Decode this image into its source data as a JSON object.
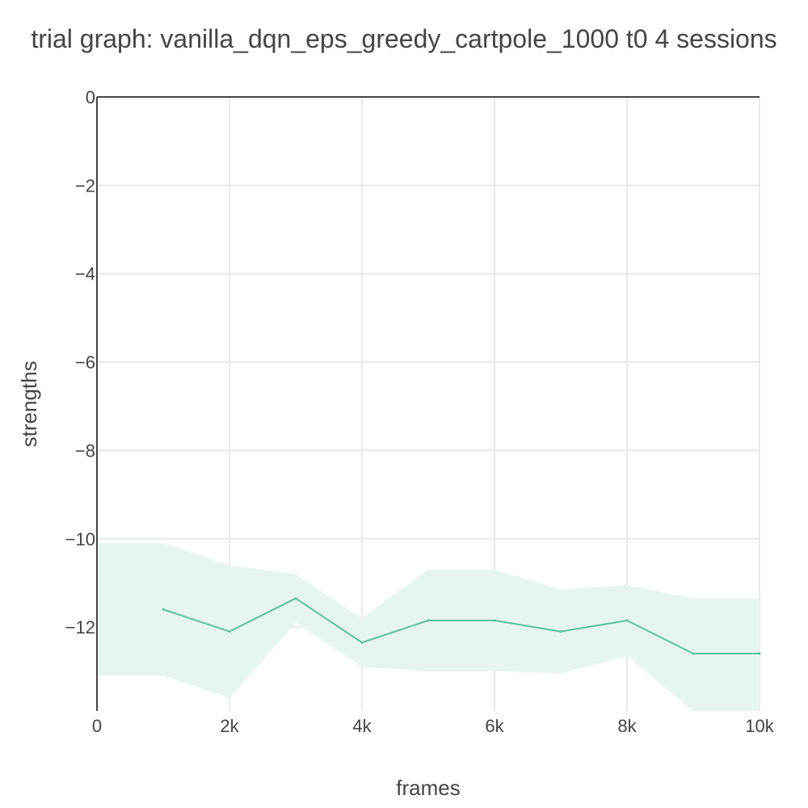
{
  "colors": {
    "line": "#5dbf9f",
    "band": "#e6f5ef",
    "grid": "#e8e8e8",
    "axis": "#444444",
    "text": "#444444"
  },
  "chart_data": {
    "type": "line",
    "title": "trial graph: vanilla_dqn_eps_greedy_cartpole_1000 t0 4 sessions",
    "xlabel": "frames",
    "ylabel": "strengths",
    "xlim": [
      0,
      10000
    ],
    "ylim": [
      -13.9,
      0
    ],
    "x_ticks": [
      0,
      2000,
      4000,
      6000,
      8000,
      10000
    ],
    "x_tick_labels": [
      "0",
      "2k",
      "4k",
      "6k",
      "8k",
      "10k"
    ],
    "y_ticks": [
      0,
      -2,
      -4,
      -6,
      -8,
      -10,
      -12
    ],
    "y_tick_labels": [
      "0",
      "−2",
      "−4",
      "−6",
      "−8",
      "−10",
      "−12"
    ],
    "grid": true,
    "legend": "none",
    "series": [
      {
        "x": [
          1000,
          2000,
          3000,
          4000,
          5000,
          6000,
          7000,
          8000,
          9000,
          10000
        ],
        "values": [
          -11.6,
          -12.1,
          -11.35,
          -12.35,
          -11.85,
          -11.85,
          -12.1,
          -11.85,
          -12.6,
          -12.6
        ]
      }
    ],
    "band": {
      "x": [
        0,
        1000,
        2000,
        3000,
        4000,
        5000,
        6000,
        7000,
        8000,
        9000,
        10000
      ],
      "upper": [
        -10.1,
        -10.1,
        -10.6,
        -10.8,
        -11.8,
        -10.7,
        -10.7,
        -11.15,
        -11.05,
        -11.35,
        -11.35
      ],
      "lower": [
        -13.1,
        -13.1,
        -13.6,
        -11.9,
        -12.9,
        -13.0,
        -13.0,
        -13.05,
        -12.65,
        -13.9,
        -13.9
      ]
    }
  }
}
